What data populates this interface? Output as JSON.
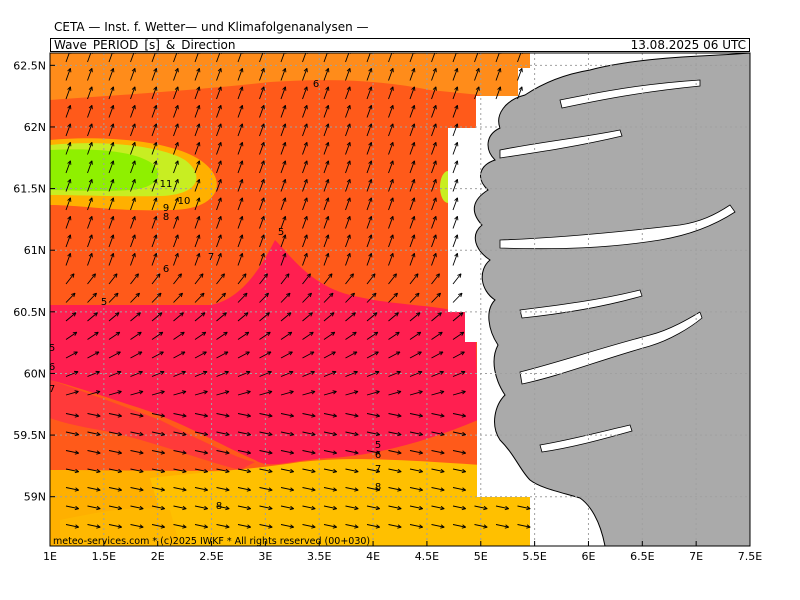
{
  "header": {
    "title": "CETA — Inst. f. Wetter— und Klimafolgenanalysen —",
    "variable": "Wave_PERIOD_[s]_&_Direction",
    "datetime": "13.08.2025  06 UTC"
  },
  "footer": {
    "credit": "meteo-services.com * (c)2025 IWKF * All rights reserved (00+030)"
  },
  "axes": {
    "x_ticks": [
      "1E",
      "1.5E",
      "2E",
      "2.5E",
      "3E",
      "3.5E",
      "4E",
      "4.5E",
      "5E",
      "5.5E",
      "6E",
      "6.5E",
      "7E",
      "7.5E"
    ],
    "y_ticks": [
      "62.5N",
      "62N",
      "61.5N",
      "61N",
      "60.5N",
      "60N",
      "59.5N",
      "59N"
    ],
    "x_range": [
      1.0,
      7.5
    ],
    "y_range": [
      58.6,
      62.6
    ]
  },
  "contour_labels": [
    "6",
    "11",
    "10",
    "9",
    "8",
    "5",
    "7",
    "6",
    "5",
    "5",
    "6",
    "7",
    "5",
    "6",
    "7",
    "8",
    "8"
  ],
  "colors": {
    "band_green": "#8ff000",
    "band_yellowgreen": "#c8ee22",
    "band_yellow": "#ffd820",
    "band_orange_light": "#ffb000",
    "band_orange": "#ff8c1a",
    "band_redorange": "#ff5a1a",
    "band_red": "#ff3030",
    "band_crimson": "#ff1f50",
    "land": "#aaaaaa",
    "grid": "#a0a0a0"
  }
}
